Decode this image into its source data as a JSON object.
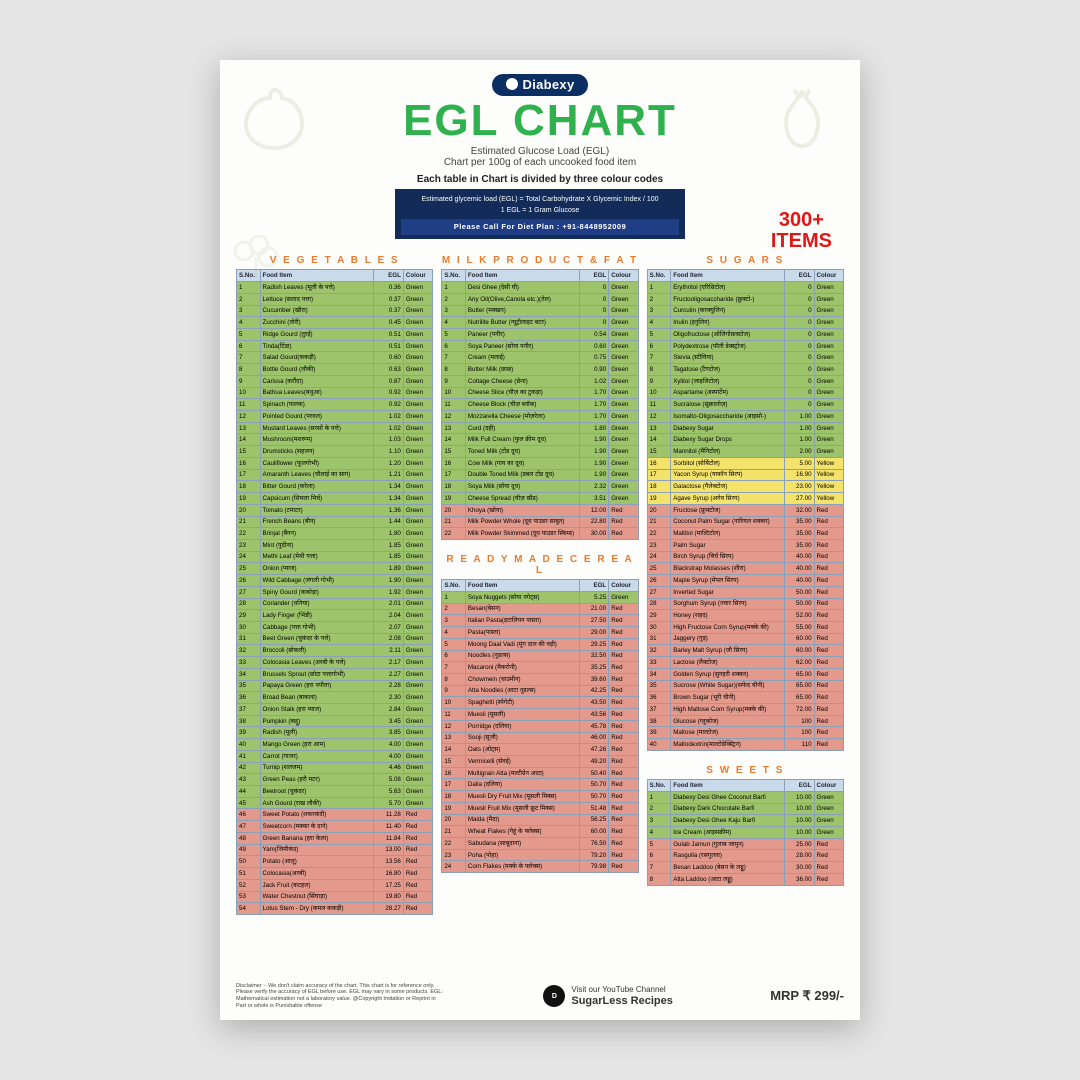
{
  "brand": "Diabexy",
  "title": "EGL CHART",
  "subtitle1": "Estimated Glucose Load (EGL)",
  "subtitle2": "Chart per 100g of each uncooked food item",
  "subtitle3": "Each table in Chart is divided by three colour codes",
  "formula_l": "Estimated glycemic load (EGL)",
  "formula_r": "Total Carbohydrate  X  Glycemic Index / 100",
  "formula_note": "1 EGL = 1 Gram Glucose",
  "formula_call": "Please Call For Diet Plan : +91-8448952009",
  "badge_top": "300+",
  "badge_bot": "ITEMS",
  "colors": {
    "green": "#9dc46a",
    "yellow": "#f4e36a",
    "red": "#e39a8c",
    "header": "#c9dbea",
    "title": "#2fb24d",
    "brand": "#0b2e63",
    "cat": "#e97b2d",
    "badge": "#e11616"
  },
  "columns": [
    "S.No.",
    "Food Item",
    "EGL",
    "Colour"
  ],
  "cat": {
    "veg": "V E G E T A B L E S",
    "milk": "M I L K   P R O D U C T   &   F A T",
    "cereal": "R E A D Y M A D E   C E R E A L",
    "sugars": "S U G A R S",
    "sweets": "S W E E T S"
  },
  "veg": [
    [
      "1",
      "Radish Leaves (मूली के पत्ते)",
      "0.36",
      "Green"
    ],
    [
      "2",
      "Lettuce (सलाद पत्ता)",
      "0.37",
      "Green"
    ],
    [
      "3",
      "Cucumber (खीरा)",
      "0.37",
      "Green"
    ],
    [
      "4",
      "Zucchini (तोरी)",
      "0.45",
      "Green"
    ],
    [
      "5",
      "Ridge Gourd (तुरई)",
      "0.51",
      "Green"
    ],
    [
      "6",
      "Tinda(टिंडा)",
      "0.51",
      "Green"
    ],
    [
      "7",
      "Salad Gourd(ककड़ी)",
      "0.60",
      "Green"
    ],
    [
      "8",
      "Bottle Gourd (लौकी)",
      "0.63",
      "Green"
    ],
    [
      "9",
      "Carissa (करौंदा)",
      "0.87",
      "Green"
    ],
    [
      "10",
      "Bathua Leaves(बथुआ)",
      "0.92",
      "Green"
    ],
    [
      "11",
      "Spinach (पालक)",
      "0.92",
      "Green"
    ],
    [
      "12",
      "Pointed Gourd (परवल)",
      "1.02",
      "Green"
    ],
    [
      "13",
      "Mustard Leaves (सरसों के पत्ते)",
      "1.02",
      "Green"
    ],
    [
      "14",
      "Mushroom(मशरूम)",
      "1.03",
      "Green"
    ],
    [
      "15",
      "Drumsticks (सहजन)",
      "1.10",
      "Green"
    ],
    [
      "16",
      "Cauliflower (फूलगोभी)",
      "1.20",
      "Green"
    ],
    [
      "17",
      "Amaranth Leaves (चौलाई का साग)",
      "1.21",
      "Green"
    ],
    [
      "18",
      "Bitter Gourd (करेला)",
      "1.34",
      "Green"
    ],
    [
      "19",
      "Capsicum (शिमला मिर्च)",
      "1.34",
      "Green"
    ],
    [
      "20",
      "Tomato (टमाटर)",
      "1.36",
      "Green"
    ],
    [
      "21",
      "French Beans (बीन)",
      "1.44",
      "Green"
    ],
    [
      "22",
      "Brinjal (बैंगन)",
      "1.80",
      "Green"
    ],
    [
      "23",
      "Mint (पुदीना)",
      "1.85",
      "Green"
    ],
    [
      "24",
      "Methi Leaf (मेथी पत्ता)",
      "1.85",
      "Green"
    ],
    [
      "25",
      "Onion (प्याज)",
      "1.89",
      "Green"
    ],
    [
      "26",
      "Wild Cabbage (जंगली गोभी)",
      "1.90",
      "Green"
    ],
    [
      "27",
      "Spiny Gourd (ककोड़ा)",
      "1.92",
      "Green"
    ],
    [
      "28",
      "Coriander (धनिया)",
      "2.01",
      "Green"
    ],
    [
      "29",
      "Lady Finger (भिंडी)",
      "2.04",
      "Green"
    ],
    [
      "30",
      "Cabbage (पत्ता गोभी)",
      "2.07",
      "Green"
    ],
    [
      "31",
      "Beet Green (चुकंदर के पत्ते)",
      "2.08",
      "Green"
    ],
    [
      "32",
      "Broccoli (ब्रोकली)",
      "2.11",
      "Green"
    ],
    [
      "33",
      "Colocasia Leaves (अरबी के पत्ते)",
      "2.17",
      "Green"
    ],
    [
      "34",
      "Brussels Sprout (छोटा पत्तागोभी)",
      "2.27",
      "Green"
    ],
    [
      "35",
      "Papaya Green (हरा पपीता)",
      "2.28",
      "Green"
    ],
    [
      "36",
      "Broad Bean (बाकला)",
      "2.30",
      "Green"
    ],
    [
      "37",
      "Onion Stalk (हरा प्याज)",
      "2.84",
      "Green"
    ],
    [
      "38",
      "Pumpkin (कद्दू)",
      "3.45",
      "Green"
    ],
    [
      "39",
      "Radish (मूली)",
      "3.85",
      "Green"
    ],
    [
      "40",
      "Mango Green (हरा आम)",
      "4.00",
      "Green"
    ],
    [
      "41",
      "Carrot (गाजर)",
      "4.00",
      "Green"
    ],
    [
      "42",
      "Turnip (शलजम)",
      "4.46",
      "Green"
    ],
    [
      "43",
      "Green Peas (हरी मटर)",
      "5.08",
      "Green"
    ],
    [
      "44",
      "Beetroot (चुकंदर)",
      "5.63",
      "Green"
    ],
    [
      "45",
      "Ash Gourd (राख लौकी)",
      "5.70",
      "Green"
    ],
    [
      "46",
      "Sweet Potato (शकरकंदी)",
      "11.28",
      "Red"
    ],
    [
      "47",
      "Sweetcorn (मक्का के दाने)",
      "11.40",
      "Red"
    ],
    [
      "48",
      "Green Banana (हरा केला)",
      "11.84",
      "Red"
    ],
    [
      "49",
      "Yam(जिमीकंद)",
      "13.00",
      "Red"
    ],
    [
      "50",
      "Potato (आलू)",
      "13.56",
      "Red"
    ],
    [
      "51",
      "Colocasia(अरबी)",
      "16.80",
      "Red"
    ],
    [
      "52",
      "Jack Fruit (कटहल)",
      "17.25",
      "Red"
    ],
    [
      "53",
      "Water Chestnut (सिंघाड़ा)",
      "19.80",
      "Red"
    ],
    [
      "54",
      "Lotus Stem - Dry (कमल ककड़ी)",
      "28.27",
      "Red"
    ]
  ],
  "milk": [
    [
      "1",
      "Desi Ghee (देसी घी)",
      "0",
      "Green"
    ],
    [
      "2",
      "Any Oil(Olive,Canola etc.)(तेल)",
      "0",
      "Green"
    ],
    [
      "3",
      "Butter (मक्खन)",
      "0",
      "Green"
    ],
    [
      "4",
      "Nutrilite Butter (न्यूट्रीलाइट बटर)",
      "0",
      "Green"
    ],
    [
      "5",
      "Paneer (पनीर)",
      "0.54",
      "Green"
    ],
    [
      "6",
      "Soya Paneer (सोया पनीर)",
      "0.60",
      "Green"
    ],
    [
      "7",
      "Cream (मलाई)",
      "0.75",
      "Green"
    ],
    [
      "8",
      "Butter Milk (छाछ)",
      "0.90",
      "Green"
    ],
    [
      "9",
      "Cottage Cheese (छेना)",
      "1.02",
      "Green"
    ],
    [
      "10",
      "Cheese Slice (चीज़ का टुकड़ा)",
      "1.70",
      "Green"
    ],
    [
      "11",
      "Cheese Block (चीज़ ब्लॉक)",
      "1.70",
      "Green"
    ],
    [
      "12",
      "Mozzarella Cheese (मोज़रेला)",
      "1.70",
      "Green"
    ],
    [
      "13",
      "Curd (दही)",
      "1.80",
      "Green"
    ],
    [
      "14",
      "Milk Full Cream (फुल क्रीम दूध)",
      "1.90",
      "Green"
    ],
    [
      "15",
      "Toned Milk (टोंड दूध)",
      "1.90",
      "Green"
    ],
    [
      "16",
      "Cow Milk (गाय का दूध)",
      "1.90",
      "Green"
    ],
    [
      "17",
      "Double Toned Milk (डबल टोंड दूध)",
      "1.90",
      "Green"
    ],
    [
      "18",
      "Soya Milk (सोया दूध)",
      "2.32",
      "Green"
    ],
    [
      "19",
      "Cheese Spread (चीज़ स्प्रैड)",
      "3.51",
      "Green"
    ],
    [
      "20",
      "Khoya (खोया)",
      "12.00",
      "Red"
    ],
    [
      "21",
      "Milk Powder Whole (दूध पाउडर साबुत)",
      "22.80",
      "Red"
    ],
    [
      "22",
      "Milk Powder Skimmed (दूध पाउडर स्किम्ड)",
      "30.00",
      "Red"
    ]
  ],
  "cereal": [
    [
      "1",
      "Soya Nuggets (सोया नगेट्स)",
      "5.25",
      "Green"
    ],
    [
      "2",
      "Besan(बेसन)",
      "21.00",
      "Red"
    ],
    [
      "3",
      "Italian Pasta(इटालियन पास्ता)",
      "27.50",
      "Red"
    ],
    [
      "4",
      "Pasta(पास्ता)",
      "29.00",
      "Red"
    ],
    [
      "5",
      "Moong Daal Vadi (मूंग दाल की वड़ी)",
      "29.25",
      "Red"
    ],
    [
      "6",
      "Noodles (नूडल्स)",
      "32.50",
      "Red"
    ],
    [
      "7",
      "Macaroni (मैकरोनी)",
      "35.25",
      "Red"
    ],
    [
      "8",
      "Chowmein (चाउमीन)",
      "39.60",
      "Red"
    ],
    [
      "9",
      "Atta Noodles (आटा नूडल्स)",
      "42.25",
      "Red"
    ],
    [
      "10",
      "Spaghetti (स्पेगेटी)",
      "43.50",
      "Red"
    ],
    [
      "11",
      "Muesli (मूसली)",
      "43.56",
      "Red"
    ],
    [
      "12",
      "Porridge (दलिया)",
      "45.78",
      "Red"
    ],
    [
      "13",
      "Sooji (सूजी)",
      "46.00",
      "Red"
    ],
    [
      "14",
      "Oats (ओट्स)",
      "47.26",
      "Red"
    ],
    [
      "15",
      "Vermicelli (सेवई)",
      "49.20",
      "Red"
    ],
    [
      "16",
      "Multigrain Atta (मल्टीग्रेन आटा)",
      "50.40",
      "Red"
    ],
    [
      "17",
      "Dalia (दलिया)",
      "50.70",
      "Red"
    ],
    [
      "18",
      "Muesli Dry Fruit Mix (मूसली मिक्स)",
      "50.70",
      "Red"
    ],
    [
      "19",
      "Muesli Fruit Mix (मूसली फ्रूट मिक्स)",
      "51.48",
      "Red"
    ],
    [
      "20",
      "Maida (मैदा)",
      "56.25",
      "Red"
    ],
    [
      "21",
      "Wheat Flakes (गेहूं के फ्लेक्स)",
      "60.00",
      "Red"
    ],
    [
      "22",
      "Sabudana (साबूदाना)",
      "76.50",
      "Red"
    ],
    [
      "23",
      "Poha (पोहा)",
      "79.20",
      "Red"
    ],
    [
      "24",
      "Corn Flakes (मक्के के फ्लेक्स)",
      "79.98",
      "Red"
    ]
  ],
  "sugars": [
    [
      "1",
      "Erythritol (एरिथ्रिटोल)",
      "0",
      "Green"
    ],
    [
      "2",
      "Fructooligosaccharide (फ्रुक्टो-)",
      "0",
      "Green"
    ],
    [
      "3",
      "Curculin (करक्युलिन)",
      "0",
      "Green"
    ],
    [
      "4",
      "Inulin (इनुलिन)",
      "0",
      "Green"
    ],
    [
      "5",
      "Oligofructose (ओलिगोफ्रक्टोज)",
      "0",
      "Green"
    ],
    [
      "6",
      "Polydextrose (पॉली डेक्स्ट्रोज)",
      "0",
      "Green"
    ],
    [
      "7",
      "Stevia (स्टीविया)",
      "0",
      "Green"
    ],
    [
      "8",
      "Tagatose (टैगटोज)",
      "0",
      "Green"
    ],
    [
      "9",
      "Xylitol (जाइलिटोल)",
      "0",
      "Green"
    ],
    [
      "10",
      "Aspartame (अस्पार्टेम)",
      "0",
      "Green"
    ],
    [
      "11",
      "Sucralose (सुक्रालोज़)",
      "0",
      "Green"
    ],
    [
      "12",
      "Isomalto-Oligosaccharide (आइसो-)",
      "1.00",
      "Green"
    ],
    [
      "13",
      "Diabexy Sugar",
      "1.00",
      "Green"
    ],
    [
      "14",
      "Diabexy Sugar Drops",
      "1.00",
      "Green"
    ],
    [
      "15",
      "Mannitol (मैनिटोल)",
      "2.00",
      "Green"
    ],
    [
      "16",
      "Sorbitol (सोर्बिटोल)",
      "5.00",
      "Yellow"
    ],
    [
      "17",
      "Yacon Syrup (याकॉन सिरप)",
      "16.90",
      "Yellow"
    ],
    [
      "18",
      "Galactose (गैलेक्टोज)",
      "23.00",
      "Yellow"
    ],
    [
      "19",
      "Agave Syrup (अगेव सिरप)",
      "27.00",
      "Yellow"
    ],
    [
      "20",
      "Fructose (फ्रुक्टोज)",
      "32.00",
      "Red"
    ],
    [
      "21",
      "Coconut Palm Sugar (नारियल शक्कर)",
      "35.00",
      "Red"
    ],
    [
      "22",
      "Maltitol (माल्टिटोल)",
      "35.00",
      "Red"
    ],
    [
      "23",
      "Palm Sugar",
      "35.00",
      "Red"
    ],
    [
      "24",
      "Birch Syrup (बिर्च सिरप)",
      "40.00",
      "Red"
    ],
    [
      "25",
      "Blackstrap Molasses (शीरा)",
      "40.00",
      "Red"
    ],
    [
      "26",
      "Maple Syrup (मेपल सिरप)",
      "40.00",
      "Red"
    ],
    [
      "27",
      "Inverted Sugar",
      "50.00",
      "Red"
    ],
    [
      "28",
      "Sorghum Syrup (ज्वार सिरप)",
      "50.00",
      "Red"
    ],
    [
      "29",
      "Honey (शहद)",
      "52.00",
      "Red"
    ],
    [
      "30",
      "High Fructose Corn Syrup(मक्के की)",
      "55.00",
      "Red"
    ],
    [
      "31",
      "Jaggery (गुड़)",
      "60.00",
      "Red"
    ],
    [
      "32",
      "Barley Malt Syrup (जौ सिरप)",
      "60.00",
      "Red"
    ],
    [
      "33",
      "Lactose (लैक्टोज)",
      "62.00",
      "Red"
    ],
    [
      "34",
      "Golden Syrup (सुनहरी शक्कर)",
      "65.00",
      "Red"
    ],
    [
      "35",
      "Sucrose (White Sugar)(सफेद चीनी)",
      "65.00",
      "Red"
    ],
    [
      "36",
      "Brown Sugar (भूरी चीनी)",
      "65.00",
      "Red"
    ],
    [
      "37",
      "High Maltose Corn Syrup(मक्के की)",
      "72.00",
      "Red"
    ],
    [
      "38",
      "Glucose (ग्लूकोज)",
      "100",
      "Red"
    ],
    [
      "39",
      "Maltose (माल्टोज)",
      "100",
      "Red"
    ],
    [
      "40",
      "Maltodextrin(माल्टोडेक्स्ट्रिन)",
      "110",
      "Red"
    ]
  ],
  "sweets": [
    [
      "1",
      "Diabexy Desi Ghee Coconut Barfi",
      "10.00",
      "Green"
    ],
    [
      "2",
      "Diabexy Dark Chocolate Barfi",
      "10.00",
      "Green"
    ],
    [
      "3",
      "Diabexy Desi Ghee Kaju Barfi",
      "10.00",
      "Green"
    ],
    [
      "4",
      "Ice Cream (आइसक्रीम)",
      "10.00",
      "Green"
    ],
    [
      "5",
      "Gulab Jamun (गुलाब जामुन)",
      "25.00",
      "Red"
    ],
    [
      "6",
      "Rasgulla (रसगुल्ला)",
      "28.00",
      "Red"
    ],
    [
      "7",
      "Besan Laddoo (बेसन के लड्डू)",
      "30.00",
      "Red"
    ],
    [
      "8",
      "Atta Laddoo (आटा लड्डू)",
      "36.00",
      "Red"
    ]
  ],
  "disclaimer": "Disclaimer :- We don't claim accuracy of the chart. This chart is for reference only. Please verify the accuracy of EGL before use. EGL may vary in some products. EGL: Mathematical estimation not a laboratory value. @Copyright Imitation or Reprint in Part or whole is Punishable offense",
  "yt_line1": "Visit our YouTube Channel",
  "yt_line2": "SugarLess Recipes",
  "mrp": "MRP ₹ 299/-"
}
